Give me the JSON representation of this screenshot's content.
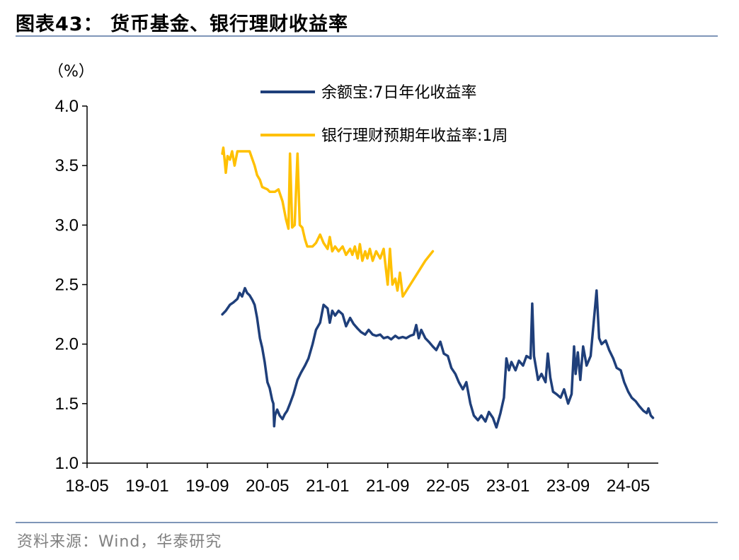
{
  "header": {
    "title": "图表43：  货币基金、银行理财收益率"
  },
  "footer": {
    "source": "资料来源：Wind，华泰研究"
  },
  "chart_data": {
    "type": "line",
    "unit_label": "（%）",
    "ylim": [
      1.0,
      4.0
    ],
    "yticks": [
      "4.0",
      "3.5",
      "3.0",
      "2.5",
      "2.0",
      "1.5",
      "1.0"
    ],
    "x_range": [
      "2018-05",
      "2024-09"
    ],
    "xticks": [
      "18-05",
      "19-01",
      "19-09",
      "20-05",
      "21-01",
      "21-09",
      "22-05",
      "23-01",
      "23-09",
      "24-05"
    ],
    "grid": false,
    "legend_position": "top-right",
    "colors": {
      "yuebao": "#1f3f7a",
      "bank": "#ffc000"
    },
    "series": [
      {
        "name": "余额宝:7日年化收益率",
        "key": "yuebao",
        "points": [
          [
            "2019-11-01",
            2.25
          ],
          [
            "2019-11-15",
            2.28
          ],
          [
            "2019-12-01",
            2.33
          ],
          [
            "2019-12-15",
            2.35
          ],
          [
            "2020-01-01",
            2.38
          ],
          [
            "2020-01-10",
            2.43
          ],
          [
            "2020-01-20",
            2.4
          ],
          [
            "2020-02-01",
            2.47
          ],
          [
            "2020-02-10",
            2.43
          ],
          [
            "2020-02-20",
            2.41
          ],
          [
            "2020-03-01",
            2.37
          ],
          [
            "2020-03-10",
            2.33
          ],
          [
            "2020-03-20",
            2.22
          ],
          [
            "2020-04-01",
            2.05
          ],
          [
            "2020-04-10",
            1.97
          ],
          [
            "2020-04-20",
            1.85
          ],
          [
            "2020-05-01",
            1.68
          ],
          [
            "2020-05-10",
            1.63
          ],
          [
            "2020-05-20",
            1.53
          ],
          [
            "2020-05-25",
            1.5
          ],
          [
            "2020-05-28",
            1.31
          ],
          [
            "2020-06-01",
            1.4
          ],
          [
            "2020-06-10",
            1.45
          ],
          [
            "2020-06-20",
            1.4
          ],
          [
            "2020-07-01",
            1.37
          ],
          [
            "2020-07-10",
            1.41
          ],
          [
            "2020-07-20",
            1.44
          ],
          [
            "2020-08-01",
            1.5
          ],
          [
            "2020-08-15",
            1.58
          ],
          [
            "2020-09-01",
            1.7
          ],
          [
            "2020-09-15",
            1.76
          ],
          [
            "2020-10-01",
            1.82
          ],
          [
            "2020-10-15",
            1.88
          ],
          [
            "2020-11-01",
            2.0
          ],
          [
            "2020-11-15",
            2.12
          ],
          [
            "2020-12-01",
            2.18
          ],
          [
            "2020-12-15",
            2.33
          ],
          [
            "2021-01-01",
            2.3
          ],
          [
            "2021-01-10",
            2.18
          ],
          [
            "2021-01-20",
            2.28
          ],
          [
            "2021-02-01",
            2.24
          ],
          [
            "2021-02-15",
            2.28
          ],
          [
            "2021-03-01",
            2.25
          ],
          [
            "2021-03-15",
            2.15
          ],
          [
            "2021-04-01",
            2.22
          ],
          [
            "2021-04-15",
            2.17
          ],
          [
            "2021-05-01",
            2.13
          ],
          [
            "2021-05-15",
            2.1
          ],
          [
            "2021-06-01",
            2.08
          ],
          [
            "2021-06-15",
            2.12
          ],
          [
            "2021-07-01",
            2.08
          ],
          [
            "2021-07-15",
            2.07
          ],
          [
            "2021-08-01",
            2.08
          ],
          [
            "2021-08-15",
            2.05
          ],
          [
            "2021-09-01",
            2.06
          ],
          [
            "2021-09-15",
            2.04
          ],
          [
            "2021-10-01",
            2.07
          ],
          [
            "2021-10-15",
            2.05
          ],
          [
            "2021-11-01",
            2.06
          ],
          [
            "2021-11-15",
            2.05
          ],
          [
            "2021-12-01",
            2.07
          ],
          [
            "2021-12-15",
            2.08
          ],
          [
            "2021-12-25",
            2.16
          ],
          [
            "2022-01-05",
            2.05
          ],
          [
            "2022-01-15",
            2.12
          ],
          [
            "2022-02-01",
            2.05
          ],
          [
            "2022-02-15",
            2.02
          ],
          [
            "2022-03-01",
            1.98
          ],
          [
            "2022-03-15",
            1.95
          ],
          [
            "2022-04-01",
            2.02
          ],
          [
            "2022-04-15",
            1.92
          ],
          [
            "2022-05-01",
            1.9
          ],
          [
            "2022-05-15",
            1.8
          ],
          [
            "2022-06-01",
            1.75
          ],
          [
            "2022-06-15",
            1.68
          ],
          [
            "2022-07-01",
            1.62
          ],
          [
            "2022-07-15",
            1.68
          ],
          [
            "2022-08-01",
            1.5
          ],
          [
            "2022-08-15",
            1.4
          ],
          [
            "2022-09-01",
            1.36
          ],
          [
            "2022-09-15",
            1.4
          ],
          [
            "2022-10-01",
            1.35
          ],
          [
            "2022-10-15",
            1.43
          ],
          [
            "2022-11-01",
            1.38
          ],
          [
            "2022-11-15",
            1.3
          ],
          [
            "2022-12-01",
            1.42
          ],
          [
            "2022-12-15",
            1.55
          ],
          [
            "2022-12-25",
            1.88
          ],
          [
            "2023-01-05",
            1.78
          ],
          [
            "2023-01-15",
            1.85
          ],
          [
            "2023-02-01",
            1.78
          ],
          [
            "2023-02-15",
            1.86
          ],
          [
            "2023-03-01",
            1.82
          ],
          [
            "2023-03-15",
            1.9
          ],
          [
            "2023-04-01",
            1.88
          ],
          [
            "2023-04-08",
            2.34
          ],
          [
            "2023-04-15",
            1.9
          ],
          [
            "2023-05-01",
            1.7
          ],
          [
            "2023-05-15",
            1.75
          ],
          [
            "2023-06-01",
            1.68
          ],
          [
            "2023-06-10",
            1.92
          ],
          [
            "2023-06-20",
            1.72
          ],
          [
            "2023-07-01",
            1.6
          ],
          [
            "2023-07-15",
            1.58
          ],
          [
            "2023-08-01",
            1.55
          ],
          [
            "2023-08-15",
            1.62
          ],
          [
            "2023-09-01",
            1.5
          ],
          [
            "2023-09-15",
            1.58
          ],
          [
            "2023-09-25",
            1.98
          ],
          [
            "2023-10-01",
            1.75
          ],
          [
            "2023-10-10",
            1.93
          ],
          [
            "2023-10-20",
            1.7
          ],
          [
            "2023-11-01",
            1.98
          ],
          [
            "2023-11-15",
            1.82
          ],
          [
            "2023-12-01",
            1.9
          ],
          [
            "2023-12-25",
            2.45
          ],
          [
            "2024-01-05",
            2.05
          ],
          [
            "2024-01-15",
            2.0
          ],
          [
            "2024-02-01",
            2.03
          ],
          [
            "2024-02-15",
            1.95
          ],
          [
            "2024-03-01",
            1.88
          ],
          [
            "2024-03-15",
            1.8
          ],
          [
            "2024-04-01",
            1.78
          ],
          [
            "2024-04-15",
            1.68
          ],
          [
            "2024-05-01",
            1.6
          ],
          [
            "2024-05-15",
            1.55
          ],
          [
            "2024-06-01",
            1.52
          ],
          [
            "2024-06-15",
            1.48
          ],
          [
            "2024-07-01",
            1.44
          ],
          [
            "2024-07-15",
            1.42
          ],
          [
            "2024-07-22",
            1.46
          ],
          [
            "2024-08-01",
            1.4
          ],
          [
            "2024-08-10",
            1.38
          ]
        ]
      },
      {
        "name": "银行理财预期年收益率:1周",
        "key": "bank",
        "points": [
          [
            "2019-11-01",
            3.6
          ],
          [
            "2019-11-05",
            3.65
          ],
          [
            "2019-11-10",
            3.55
          ],
          [
            "2019-11-15",
            3.44
          ],
          [
            "2019-11-22",
            3.58
          ],
          [
            "2019-12-01",
            3.55
          ],
          [
            "2019-12-10",
            3.62
          ],
          [
            "2019-12-20",
            3.5
          ],
          [
            "2020-01-01",
            3.62
          ],
          [
            "2020-01-15",
            3.62
          ],
          [
            "2020-02-01",
            3.62
          ],
          [
            "2020-02-20",
            3.62
          ],
          [
            "2020-03-10",
            3.5
          ],
          [
            "2020-03-20",
            3.42
          ],
          [
            "2020-04-01",
            3.38
          ],
          [
            "2020-04-10",
            3.32
          ],
          [
            "2020-05-01",
            3.3
          ],
          [
            "2020-05-10",
            3.28
          ],
          [
            "2020-06-01",
            3.28
          ],
          [
            "2020-06-15",
            3.3
          ],
          [
            "2020-07-01",
            3.2
          ],
          [
            "2020-07-15",
            3.05
          ],
          [
            "2020-07-25",
            2.97
          ],
          [
            "2020-08-01",
            3.6
          ],
          [
            "2020-08-10",
            2.98
          ],
          [
            "2020-08-20",
            3.0
          ],
          [
            "2020-09-01",
            3.6
          ],
          [
            "2020-09-10",
            3.0
          ],
          [
            "2020-09-20",
            2.98
          ],
          [
            "2020-10-01",
            2.88
          ],
          [
            "2020-10-10",
            2.82
          ],
          [
            "2020-11-01",
            2.82
          ],
          [
            "2020-11-15",
            2.85
          ],
          [
            "2020-12-01",
            2.92
          ],
          [
            "2020-12-15",
            2.85
          ],
          [
            "2021-01-01",
            2.8
          ],
          [
            "2021-01-10",
            2.9
          ],
          [
            "2021-01-20",
            2.78
          ],
          [
            "2021-02-01",
            2.82
          ],
          [
            "2021-02-15",
            2.78
          ],
          [
            "2021-03-01",
            2.82
          ],
          [
            "2021-03-15",
            2.75
          ],
          [
            "2021-04-01",
            2.8
          ],
          [
            "2021-04-10",
            2.75
          ],
          [
            "2021-04-20",
            2.82
          ],
          [
            "2021-05-01",
            2.72
          ],
          [
            "2021-05-10",
            2.84
          ],
          [
            "2021-05-20",
            2.7
          ],
          [
            "2021-06-01",
            2.78
          ],
          [
            "2021-06-10",
            2.72
          ],
          [
            "2021-06-20",
            2.8
          ],
          [
            "2021-07-01",
            2.7
          ],
          [
            "2021-07-15",
            2.78
          ],
          [
            "2021-08-01",
            2.72
          ],
          [
            "2021-08-15",
            2.8
          ],
          [
            "2021-09-01",
            2.5
          ],
          [
            "2021-09-10",
            2.8
          ],
          [
            "2021-09-20",
            2.5
          ],
          [
            "2021-10-01",
            2.55
          ],
          [
            "2021-10-10",
            2.45
          ],
          [
            "2021-10-20",
            2.6
          ],
          [
            "2021-11-01",
            2.4
          ],
          [
            "2021-12-01",
            2.5
          ],
          [
            "2022-01-01",
            2.6
          ],
          [
            "2022-02-01",
            2.7
          ],
          [
            "2022-03-01",
            2.78
          ]
        ]
      }
    ]
  }
}
